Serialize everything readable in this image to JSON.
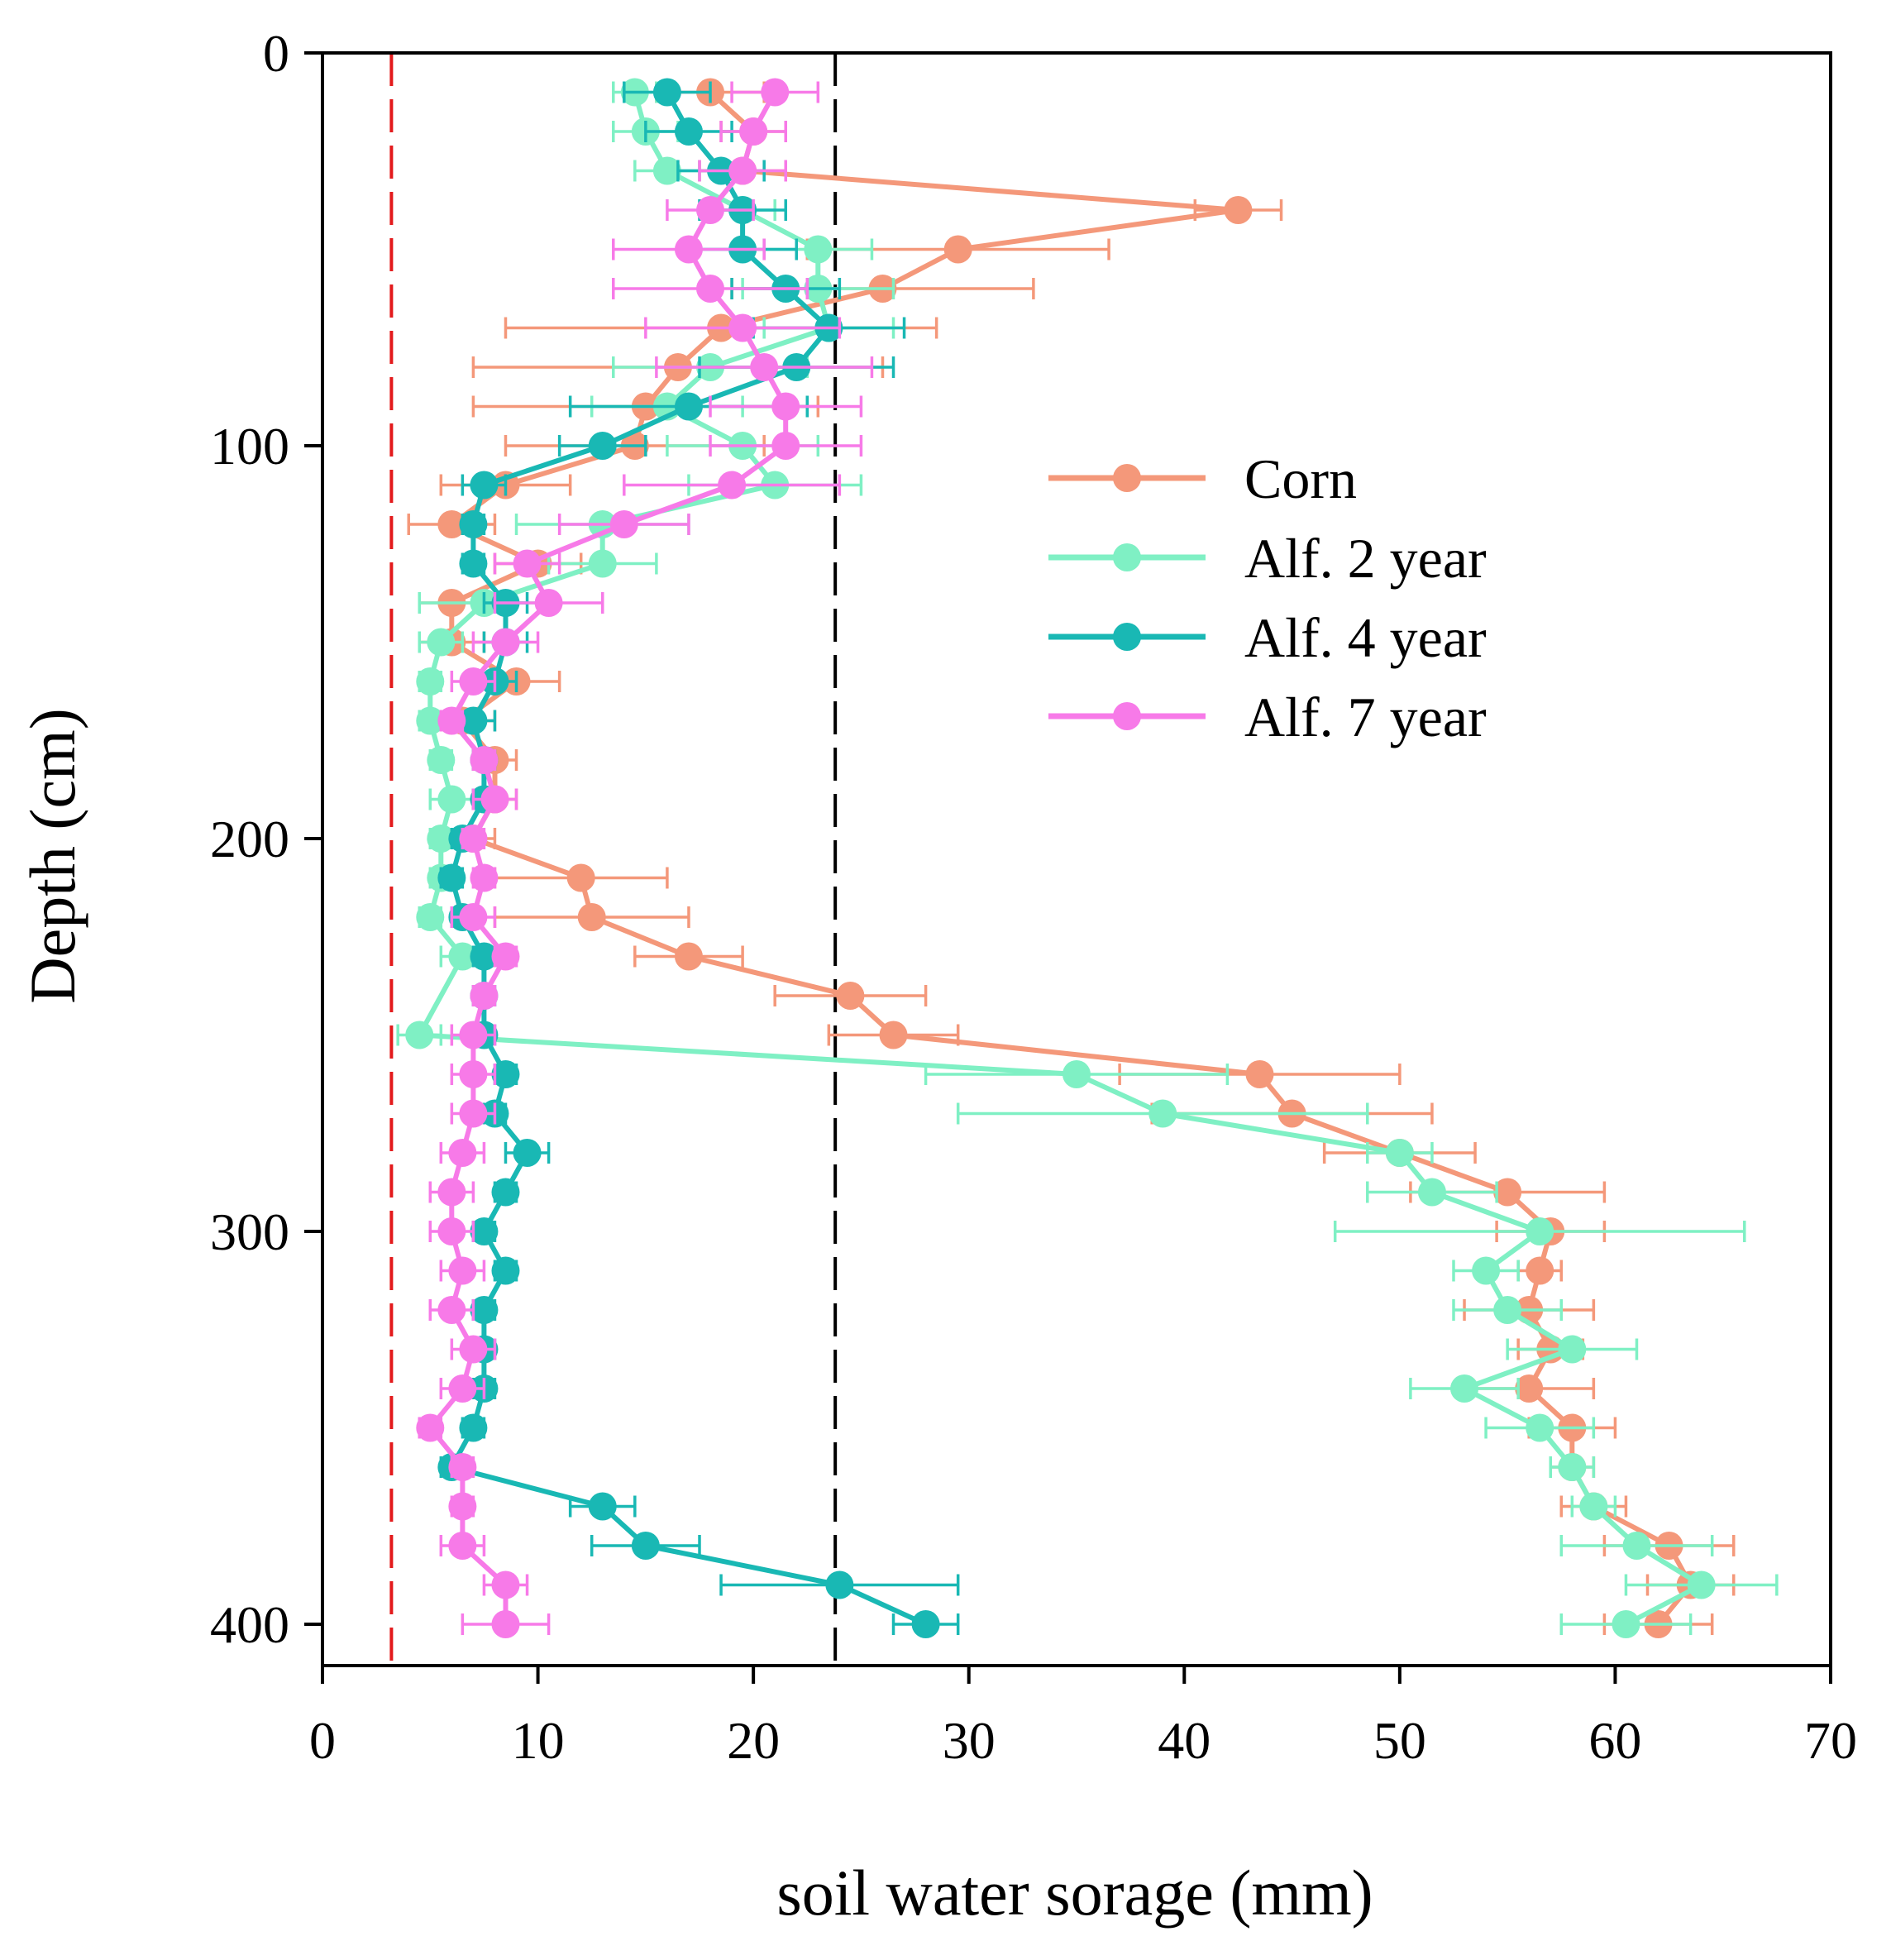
{
  "chart_data": {
    "type": "line",
    "orientation": "vertical-profile",
    "xlabel": "soil water sorage (mm)",
    "ylabel": "Depth (cm)",
    "xlim": [
      0,
      70
    ],
    "ylim": [
      0,
      410
    ],
    "y_inverted": true,
    "xticks": [
      0,
      10,
      20,
      30,
      40,
      50,
      60,
      70
    ],
    "xtick_labels": [
      "0",
      "10",
      "20",
      "30",
      "40",
      "50",
      "60",
      "70"
    ],
    "yticks": [
      0,
      100,
      200,
      300,
      400
    ],
    "ytick_labels": [
      "0",
      "100",
      "200",
      "300",
      "400"
    ],
    "legend_position": "upper-right",
    "reference_lines": [
      {
        "name": "red-dashed-line",
        "x": 3.2,
        "color": "#e31a1c"
      },
      {
        "name": "black-dashed-line",
        "x": 23.8,
        "color": "#000000"
      }
    ],
    "series": [
      {
        "name": "Corn",
        "color": "#f4987a",
        "points": [
          {
            "depth": 10,
            "value": 18.0,
            "err": 2.5
          },
          {
            "depth": 20,
            "value": 20.0,
            "err": 1.5
          },
          {
            "depth": 30,
            "value": 19.5,
            "err": 2.0
          },
          {
            "depth": 40,
            "value": 42.5,
            "err": 2.0
          },
          {
            "depth": 50,
            "value": 29.5,
            "err": 7.0
          },
          {
            "depth": 60,
            "value": 26.0,
            "err": 7.0
          },
          {
            "depth": 70,
            "value": 18.5,
            "err": 10.0
          },
          {
            "depth": 80,
            "value": 16.5,
            "err": 9.5
          },
          {
            "depth": 90,
            "value": 15.0,
            "err": 8.0
          },
          {
            "depth": 100,
            "value": 14.5,
            "err": 6.0
          },
          {
            "depth": 110,
            "value": 8.5,
            "err": 3.0
          },
          {
            "depth": 120,
            "value": 6.0,
            "err": 2.0
          },
          {
            "depth": 130,
            "value": 10.0,
            "err": 2.0
          },
          {
            "depth": 140,
            "value": 6.0,
            "err": 1.5
          },
          {
            "depth": 150,
            "value": 6.0,
            "err": 1.5
          },
          {
            "depth": 160,
            "value": 9.0,
            "err": 2.0
          },
          {
            "depth": 170,
            "value": 6.5,
            "err": 1.5
          },
          {
            "depth": 180,
            "value": 8.0,
            "err": 1.0
          },
          {
            "depth": 190,
            "value": 8.0,
            "err": 1.0
          },
          {
            "depth": 200,
            "value": 7.0,
            "err": 1.0
          },
          {
            "depth": 210,
            "value": 12.0,
            "err": 4.0
          },
          {
            "depth": 220,
            "value": 12.5,
            "err": 4.5
          },
          {
            "depth": 230,
            "value": 17.0,
            "err": 2.5
          },
          {
            "depth": 240,
            "value": 24.5,
            "err": 3.5
          },
          {
            "depth": 250,
            "value": 26.5,
            "err": 3.0
          },
          {
            "depth": 260,
            "value": 43.5,
            "err": 6.5
          },
          {
            "depth": 270,
            "value": 45.0,
            "err": 6.5
          },
          {
            "depth": 280,
            "value": 50.0,
            "err": 3.5
          },
          {
            "depth": 290,
            "value": 55.0,
            "err": 4.5
          },
          {
            "depth": 300,
            "value": 57.0,
            "err": 2.5
          },
          {
            "depth": 310,
            "value": 56.5,
            "err": 1.0
          },
          {
            "depth": 320,
            "value": 56.0,
            "err": 3.0
          },
          {
            "depth": 330,
            "value": 57.0,
            "err": 1.5
          },
          {
            "depth": 340,
            "value": 56.0,
            "err": 3.0
          },
          {
            "depth": 350,
            "value": 58.0,
            "err": 2.0
          },
          {
            "depth": 360,
            "value": 58.0,
            "err": 1.0
          },
          {
            "depth": 370,
            "value": 59.0,
            "err": 1.5
          },
          {
            "depth": 380,
            "value": 62.5,
            "err": 3.0
          },
          {
            "depth": 390,
            "value": 63.5,
            "err": 2.0
          },
          {
            "depth": 400,
            "value": 62.0,
            "err": 2.5
          }
        ]
      },
      {
        "name": "Alf. 2 year",
        "color": "#7ff0c4",
        "points": [
          {
            "depth": 10,
            "value": 14.5,
            "err": 1.0
          },
          {
            "depth": 20,
            "value": 15.0,
            "err": 1.5
          },
          {
            "depth": 30,
            "value": 16.0,
            "err": 1.5
          },
          {
            "depth": 40,
            "value": 19.5,
            "err": 1.5
          },
          {
            "depth": 50,
            "value": 23.0,
            "err": 2.5
          },
          {
            "depth": 60,
            "value": 23.0,
            "err": 3.5
          },
          {
            "depth": 70,
            "value": 23.5,
            "err": 3.0
          },
          {
            "depth": 80,
            "value": 18.0,
            "err": 4.5
          },
          {
            "depth": 90,
            "value": 16.0,
            "err": 3.5
          },
          {
            "depth": 100,
            "value": 19.5,
            "err": 3.5
          },
          {
            "depth": 110,
            "value": 21.0,
            "err": 4.0
          },
          {
            "depth": 120,
            "value": 13.0,
            "err": 4.0
          },
          {
            "depth": 130,
            "value": 13.0,
            "err": 2.5
          },
          {
            "depth": 140,
            "value": 7.5,
            "err": 3.0
          },
          {
            "depth": 150,
            "value": 5.5,
            "err": 1.0
          },
          {
            "depth": 160,
            "value": 5.0,
            "err": 0.5
          },
          {
            "depth": 170,
            "value": 5.0,
            "err": 0.5
          },
          {
            "depth": 180,
            "value": 5.5,
            "err": 0.5
          },
          {
            "depth": 190,
            "value": 6.0,
            "err": 1.0
          },
          {
            "depth": 200,
            "value": 5.5,
            "err": 0.5
          },
          {
            "depth": 210,
            "value": 5.5,
            "err": 0.5
          },
          {
            "depth": 220,
            "value": 5.0,
            "err": 0.5
          },
          {
            "depth": 230,
            "value": 6.5,
            "err": 1.0
          },
          {
            "depth": 250,
            "value": 4.5,
            "err": 1.0
          },
          {
            "depth": 260,
            "value": 35.0,
            "err": 7.0
          },
          {
            "depth": 270,
            "value": 39.0,
            "err": 9.5
          },
          {
            "depth": 280,
            "value": 50.0,
            "err": 1.5
          },
          {
            "depth": 290,
            "value": 51.5,
            "err": 3.0
          },
          {
            "depth": 300,
            "value": 56.5,
            "err": 9.5
          },
          {
            "depth": 310,
            "value": 54.0,
            "err": 1.5
          },
          {
            "depth": 320,
            "value": 55.0,
            "err": 2.5
          },
          {
            "depth": 330,
            "value": 58.0,
            "err": 3.0
          },
          {
            "depth": 340,
            "value": 53.0,
            "err": 2.5
          },
          {
            "depth": 350,
            "value": 56.5,
            "err": 2.5
          },
          {
            "depth": 360,
            "value": 58.0,
            "err": 1.0
          },
          {
            "depth": 370,
            "value": 59.0,
            "err": 1.0
          },
          {
            "depth": 380,
            "value": 61.0,
            "err": 3.5
          },
          {
            "depth": 390,
            "value": 64.0,
            "err": 3.5
          },
          {
            "depth": 400,
            "value": 60.5,
            "err": 3.0
          }
        ]
      },
      {
        "name": "Alf. 4 year",
        "color": "#19b8b4",
        "points": [
          {
            "depth": 10,
            "value": 16.0,
            "err": 2.0
          },
          {
            "depth": 20,
            "value": 17.0,
            "err": 2.0
          },
          {
            "depth": 30,
            "value": 18.5,
            "err": 2.0
          },
          {
            "depth": 40,
            "value": 19.5,
            "err": 2.0
          },
          {
            "depth": 50,
            "value": 19.5,
            "err": 2.5
          },
          {
            "depth": 60,
            "value": 21.5,
            "err": 2.5
          },
          {
            "depth": 70,
            "value": 23.5,
            "err": 3.5
          },
          {
            "depth": 80,
            "value": 22.0,
            "err": 4.5
          },
          {
            "depth": 90,
            "value": 17.0,
            "err": 5.5
          },
          {
            "depth": 100,
            "value": 13.0,
            "err": 2.0
          },
          {
            "depth": 110,
            "value": 7.5,
            "err": 1.0
          },
          {
            "depth": 120,
            "value": 7.0,
            "err": 0.5
          },
          {
            "depth": 130,
            "value": 7.0,
            "err": 0.5
          },
          {
            "depth": 140,
            "value": 8.5,
            "err": 1.0
          },
          {
            "depth": 150,
            "value": 8.5,
            "err": 1.0
          },
          {
            "depth": 160,
            "value": 8.0,
            "err": 1.0
          },
          {
            "depth": 170,
            "value": 7.0,
            "err": 1.0
          },
          {
            "depth": 180,
            "value": 7.5,
            "err": 0.5
          },
          {
            "depth": 190,
            "value": 7.5,
            "err": 0.5
          },
          {
            "depth": 200,
            "value": 6.5,
            "err": 0.5
          },
          {
            "depth": 210,
            "value": 6.0,
            "err": 0.5
          },
          {
            "depth": 220,
            "value": 6.5,
            "err": 0.5
          },
          {
            "depth": 230,
            "value": 7.5,
            "err": 0.5
          },
          {
            "depth": 240,
            "value": 7.5,
            "err": 0.5
          },
          {
            "depth": 250,
            "value": 7.5,
            "err": 0.5
          },
          {
            "depth": 260,
            "value": 8.5,
            "err": 0.5
          },
          {
            "depth": 270,
            "value": 8.0,
            "err": 0.5
          },
          {
            "depth": 280,
            "value": 9.5,
            "err": 1.0
          },
          {
            "depth": 290,
            "value": 8.5,
            "err": 0.5
          },
          {
            "depth": 300,
            "value": 7.5,
            "err": 0.5
          },
          {
            "depth": 310,
            "value": 8.5,
            "err": 0.5
          },
          {
            "depth": 320,
            "value": 7.5,
            "err": 0.5
          },
          {
            "depth": 330,
            "value": 7.5,
            "err": 0.5
          },
          {
            "depth": 340,
            "value": 7.5,
            "err": 0.5
          },
          {
            "depth": 350,
            "value": 7.0,
            "err": 0.5
          },
          {
            "depth": 360,
            "value": 6.0,
            "err": 0.5
          },
          {
            "depth": 370,
            "value": 13.0,
            "err": 1.5
          },
          {
            "depth": 380,
            "value": 15.0,
            "err": 2.5
          },
          {
            "depth": 390,
            "value": 24.0,
            "err": 5.5
          },
          {
            "depth": 400,
            "value": 28.0,
            "err": 1.5
          }
        ]
      },
      {
        "name": "Alf. 7 year",
        "color": "#f77ae8",
        "points": [
          {
            "depth": 10,
            "value": 21.0,
            "err": 2.0
          },
          {
            "depth": 20,
            "value": 20.0,
            "err": 1.5
          },
          {
            "depth": 30,
            "value": 19.5,
            "err": 2.0
          },
          {
            "depth": 40,
            "value": 18.0,
            "err": 2.0
          },
          {
            "depth": 50,
            "value": 17.0,
            "err": 3.5
          },
          {
            "depth": 60,
            "value": 18.0,
            "err": 4.5
          },
          {
            "depth": 70,
            "value": 19.5,
            "err": 4.5
          },
          {
            "depth": 80,
            "value": 20.5,
            "err": 5.0
          },
          {
            "depth": 90,
            "value": 21.5,
            "err": 3.5
          },
          {
            "depth": 100,
            "value": 21.5,
            "err": 3.5
          },
          {
            "depth": 110,
            "value": 19.0,
            "err": 5.0
          },
          {
            "depth": 120,
            "value": 14.0,
            "err": 3.0
          },
          {
            "depth": 130,
            "value": 9.5,
            "err": 1.5
          },
          {
            "depth": 140,
            "value": 10.5,
            "err": 2.5
          },
          {
            "depth": 150,
            "value": 8.5,
            "err": 1.5
          },
          {
            "depth": 160,
            "value": 7.0,
            "err": 1.0
          },
          {
            "depth": 170,
            "value": 6.0,
            "err": 0.5
          },
          {
            "depth": 180,
            "value": 7.5,
            "err": 0.5
          },
          {
            "depth": 190,
            "value": 8.0,
            "err": 1.0
          },
          {
            "depth": 200,
            "value": 7.0,
            "err": 0.5
          },
          {
            "depth": 210,
            "value": 7.5,
            "err": 0.5
          },
          {
            "depth": 220,
            "value": 7.0,
            "err": 1.0
          },
          {
            "depth": 230,
            "value": 8.5,
            "err": 0.5
          },
          {
            "depth": 240,
            "value": 7.5,
            "err": 0.5
          },
          {
            "depth": 250,
            "value": 7.0,
            "err": 1.0
          },
          {
            "depth": 260,
            "value": 7.0,
            "err": 1.0
          },
          {
            "depth": 270,
            "value": 7.0,
            "err": 1.0
          },
          {
            "depth": 280,
            "value": 6.5,
            "err": 1.0
          },
          {
            "depth": 290,
            "value": 6.0,
            "err": 1.0
          },
          {
            "depth": 300,
            "value": 6.0,
            "err": 1.0
          },
          {
            "depth": 310,
            "value": 6.5,
            "err": 1.0
          },
          {
            "depth": 320,
            "value": 6.0,
            "err": 1.0
          },
          {
            "depth": 330,
            "value": 7.0,
            "err": 1.0
          },
          {
            "depth": 340,
            "value": 6.5,
            "err": 1.0
          },
          {
            "depth": 350,
            "value": 5.0,
            "err": 0.5
          },
          {
            "depth": 360,
            "value": 6.5,
            "err": 0.5
          },
          {
            "depth": 370,
            "value": 6.5,
            "err": 0.5
          },
          {
            "depth": 380,
            "value": 6.5,
            "err": 1.0
          },
          {
            "depth": 390,
            "value": 8.5,
            "err": 1.0
          },
          {
            "depth": 400,
            "value": 8.5,
            "err": 2.0
          }
        ]
      }
    ]
  }
}
